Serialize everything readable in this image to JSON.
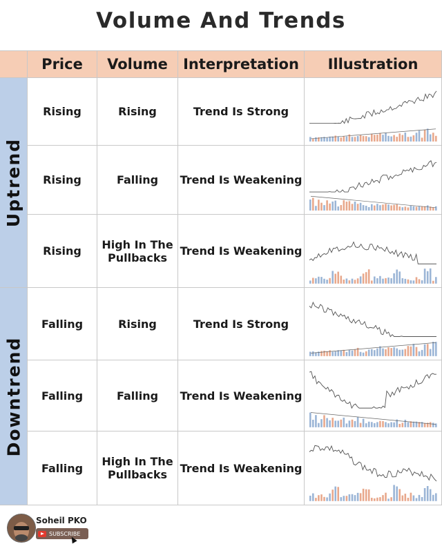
{
  "title": "Volume And Trends",
  "headers": [
    "Price",
    "Volume",
    "Interpretation",
    "Illustration"
  ],
  "groups": [
    {
      "label": "Uptrend",
      "rows": [
        {
          "price": "Rising",
          "volume": "Rising",
          "interpretation": "Trend Is Strong"
        },
        {
          "price": "Rising",
          "volume": "Falling",
          "interpretation": "Trend Is Weakening"
        },
        {
          "price": "Rising",
          "volume": "High In The Pullbacks",
          "interpretation": "Trend Is Weakening"
        }
      ]
    },
    {
      "label": "Downtrend",
      "rows": [
        {
          "price": "Falling",
          "volume": "Rising",
          "interpretation": "Trend Is Strong"
        },
        {
          "price": "Falling",
          "volume": "Falling",
          "interpretation": "Trend Is Weakening"
        },
        {
          "price": "Falling",
          "volume": "High In The Pullbacks",
          "interpretation": "Trend Is Weakening"
        }
      ]
    }
  ],
  "footer": {
    "author": "Soheil PKO",
    "subscribe": "SUBSCRIBE"
  },
  "colors": {
    "header_bg": "#f6cdb5",
    "side_bg": "#bccfe8",
    "up_volume": "#9bb5d6",
    "down_volume": "#e8a88c"
  }
}
